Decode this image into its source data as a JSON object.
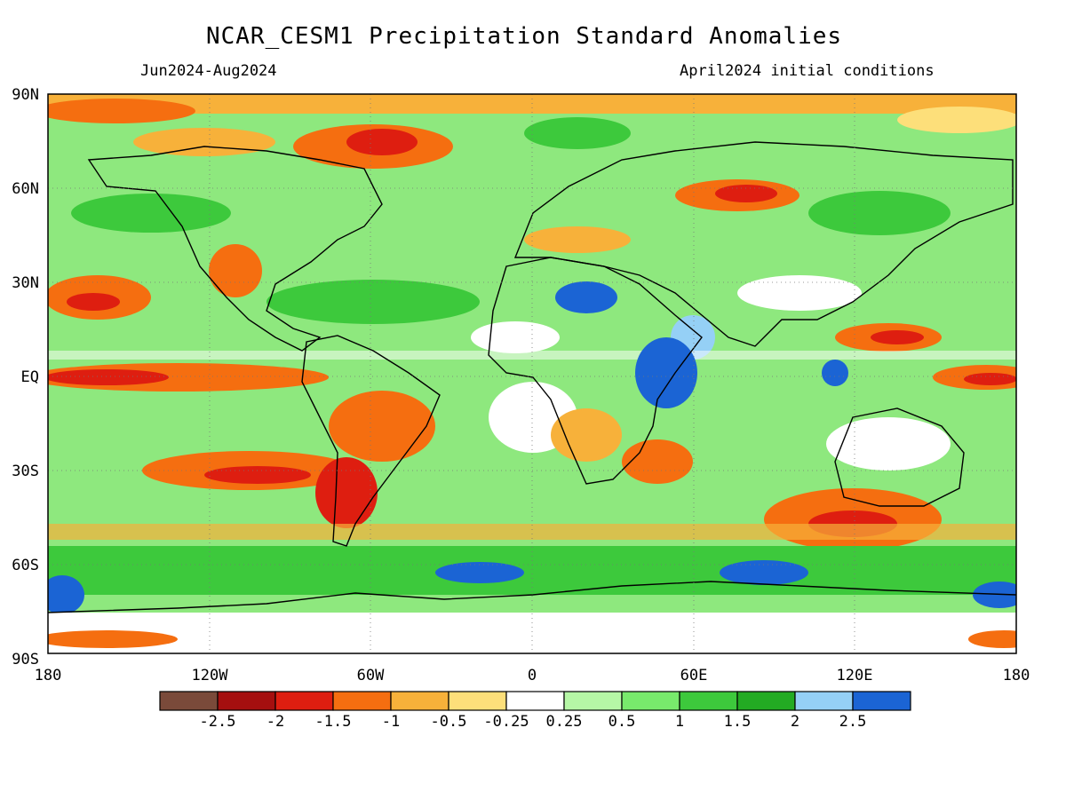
{
  "header": {
    "title": "NCAR_CESM1 Precipitation Standard Anomalies",
    "period": "Jun2024-Aug2024",
    "init": "April2024 initial conditions"
  },
  "axes": {
    "lat_labels": [
      "90N",
      "60N",
      "30N",
      "EQ",
      "30S",
      "60S",
      "90S"
    ],
    "lon_labels": [
      "180",
      "120W",
      "60W",
      "0",
      "60E",
      "120E",
      "180"
    ]
  },
  "colorbar": {
    "colors": [
      "#7a4a3a",
      "#a50f0f",
      "#de1e10",
      "#f56e10",
      "#f7b13a",
      "#fddf7a",
      "#ffffff",
      "#b6f7a6",
      "#78ea6c",
      "#3dc93c",
      "#23ab23",
      "#95d0f6",
      "#1b64d4"
    ],
    "tick_labels": [
      "-2.5",
      "-2",
      "-1.5",
      "-1",
      "-0.5",
      "-0.25",
      "0.25",
      "0.5",
      "1",
      "1.5",
      "2",
      "2.5"
    ]
  }
}
